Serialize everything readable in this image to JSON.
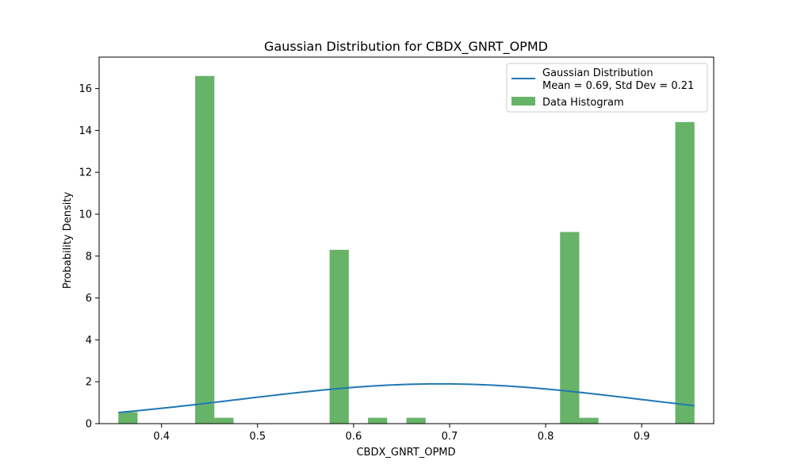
{
  "chart_data": {
    "type": "bar",
    "title": "Gaussian Distribution for CBDX_GNRT_OPMD",
    "xlabel": "CBDX_GNRT_OPMD",
    "ylabel": "Probability Density",
    "xlim": [
      0.335,
      0.975
    ],
    "ylim": [
      0,
      17.5
    ],
    "xticks": [
      "0.4",
      "0.5",
      "0.6",
      "0.7",
      "0.8",
      "0.9"
    ],
    "yticks": [
      "0",
      "2",
      "4",
      "6",
      "8",
      "10",
      "12",
      "14",
      "16"
    ],
    "grid": false,
    "legend_position": "top-right",
    "colors": {
      "histogram": "#4ca64c",
      "gaussian": "#1f77b4"
    },
    "histogram": {
      "name": "Data Histogram",
      "bins": [
        {
          "x0": 0.355,
          "x1": 0.375,
          "value": 0.55
        },
        {
          "x0": 0.435,
          "x1": 0.455,
          "value": 16.6
        },
        {
          "x0": 0.455,
          "x1": 0.475,
          "value": 0.28
        },
        {
          "x0": 0.575,
          "x1": 0.595,
          "value": 8.3
        },
        {
          "x0": 0.615,
          "x1": 0.635,
          "value": 0.28
        },
        {
          "x0": 0.655,
          "x1": 0.675,
          "value": 0.28
        },
        {
          "x0": 0.815,
          "x1": 0.835,
          "value": 9.15
        },
        {
          "x0": 0.835,
          "x1": 0.855,
          "value": 0.28
        },
        {
          "x0": 0.935,
          "x1": 0.955,
          "value": 14.4
        }
      ]
    },
    "gaussian": {
      "name_line1": "Gaussian Distribution",
      "name_line2": "Mean = 0.69, Std Dev = 0.21",
      "mean": 0.69,
      "std": 0.21,
      "x_range": [
        0.355,
        0.955
      ]
    }
  }
}
